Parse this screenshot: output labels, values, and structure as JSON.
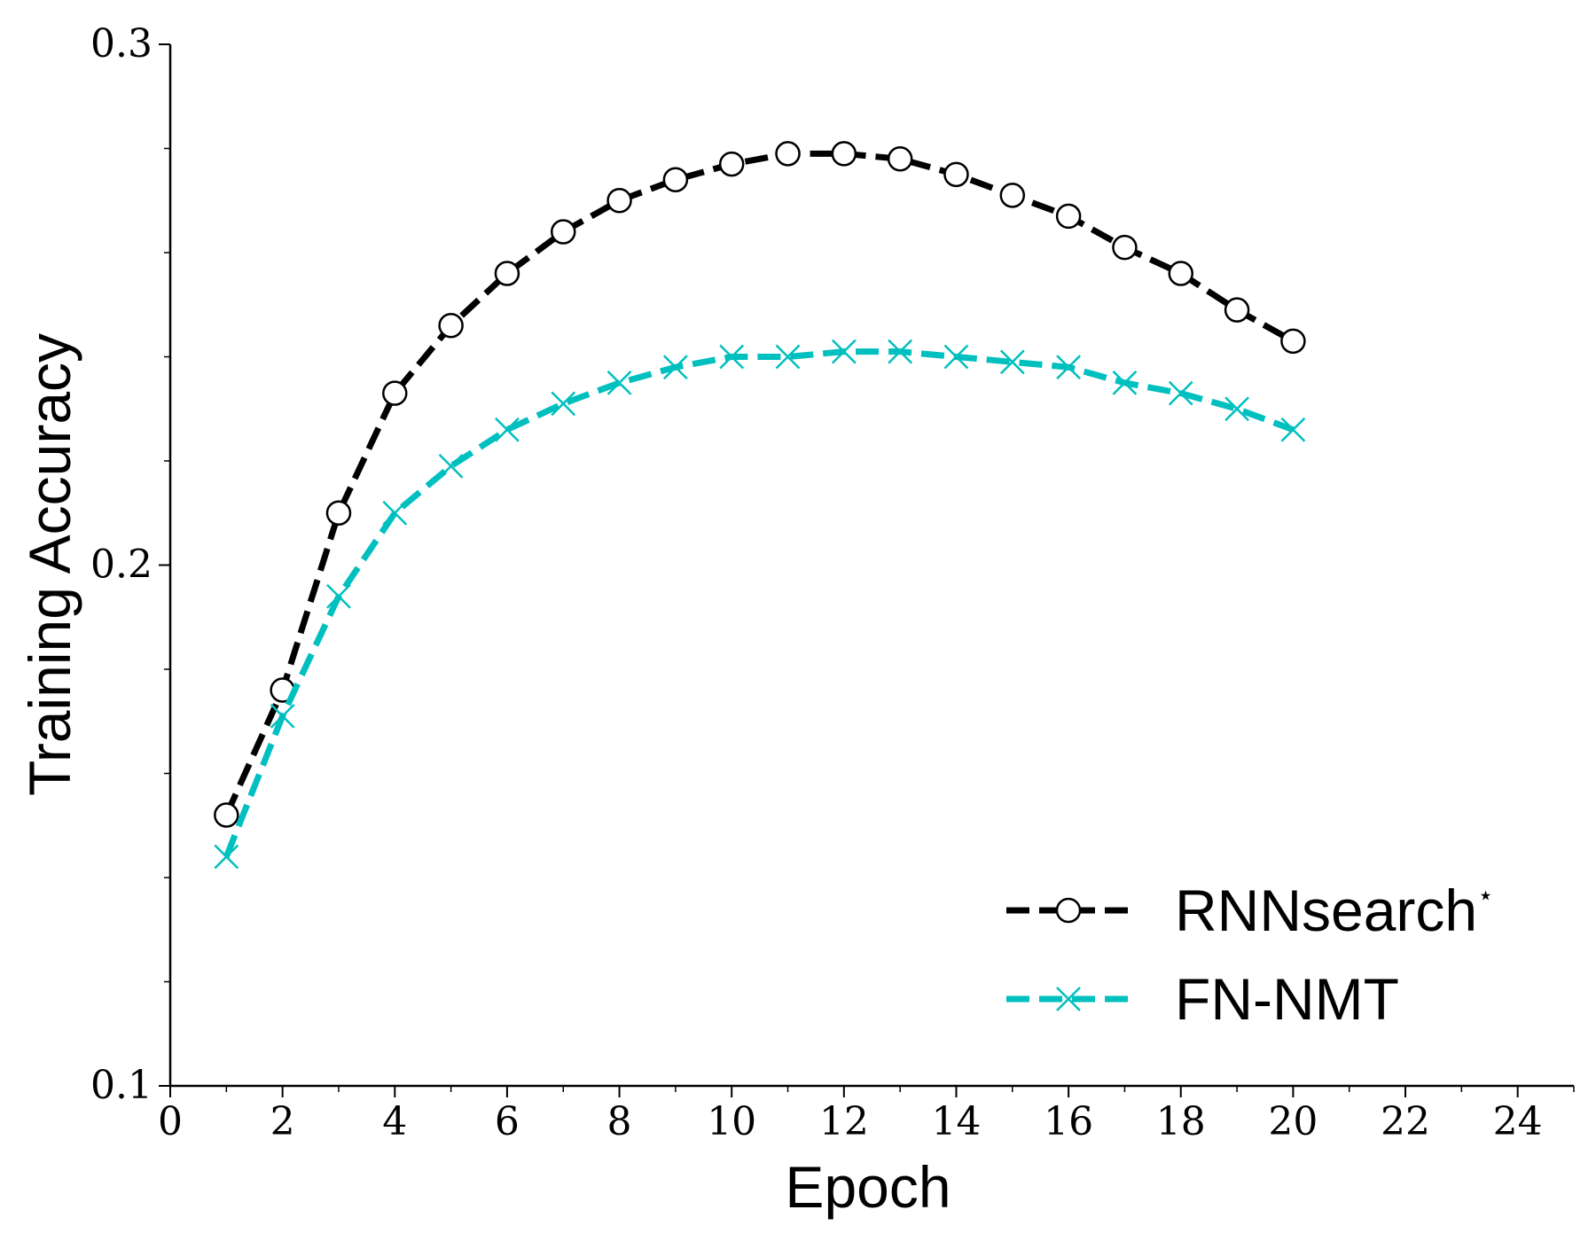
{
  "chart_data": {
    "type": "line",
    "xlabel": "Epoch",
    "ylabel": "Training Accuracy",
    "xlim": [
      0,
      25
    ],
    "ylim": [
      0.1,
      0.3
    ],
    "x_ticks_major": [
      0,
      2,
      4,
      6,
      8,
      10,
      12,
      14,
      16,
      18,
      20,
      22,
      24
    ],
    "x_tick_labels": [
      "0",
      "2",
      "4",
      "6",
      "8",
      "10",
      "12",
      "14",
      "16",
      "18",
      "20",
      "22",
      "24"
    ],
    "x_ticks_minor": [
      1,
      3,
      5,
      7,
      9,
      11,
      13,
      15,
      17,
      19,
      21,
      23,
      25
    ],
    "y_ticks_major": [
      0.1,
      0.2,
      0.3
    ],
    "y_tick_labels": [
      "0.1",
      "0.2",
      "0.3"
    ],
    "y_ticks_minor": [
      0.12,
      0.14,
      0.16,
      0.18,
      0.22,
      0.24,
      0.26,
      0.28
    ],
    "grid": false,
    "legend_position": "lower-right",
    "x": [
      1,
      2,
      3,
      4,
      5,
      6,
      7,
      8,
      9,
      10,
      11,
      12,
      13,
      14,
      15,
      16,
      17,
      18,
      19,
      20
    ],
    "series": [
      {
        "name": "RNNsearch",
        "name_superscript": "⋆",
        "color": "#000000",
        "marker": "circle",
        "linestyle": "dashed",
        "values": [
          0.152,
          0.176,
          0.21,
          0.233,
          0.246,
          0.256,
          0.264,
          0.27,
          0.274,
          0.277,
          0.279,
          0.279,
          0.278,
          0.275,
          0.271,
          0.267,
          0.261,
          0.256,
          0.249,
          0.243
        ]
      },
      {
        "name": "FN-NMT",
        "color": "#00bfbf",
        "marker": "x",
        "linestyle": "dashed",
        "values": [
          0.144,
          0.171,
          0.194,
          0.21,
          0.219,
          0.226,
          0.231,
          0.235,
          0.238,
          0.24,
          0.24,
          0.241,
          0.241,
          0.24,
          0.239,
          0.238,
          0.235,
          0.233,
          0.23,
          0.226
        ]
      }
    ]
  }
}
